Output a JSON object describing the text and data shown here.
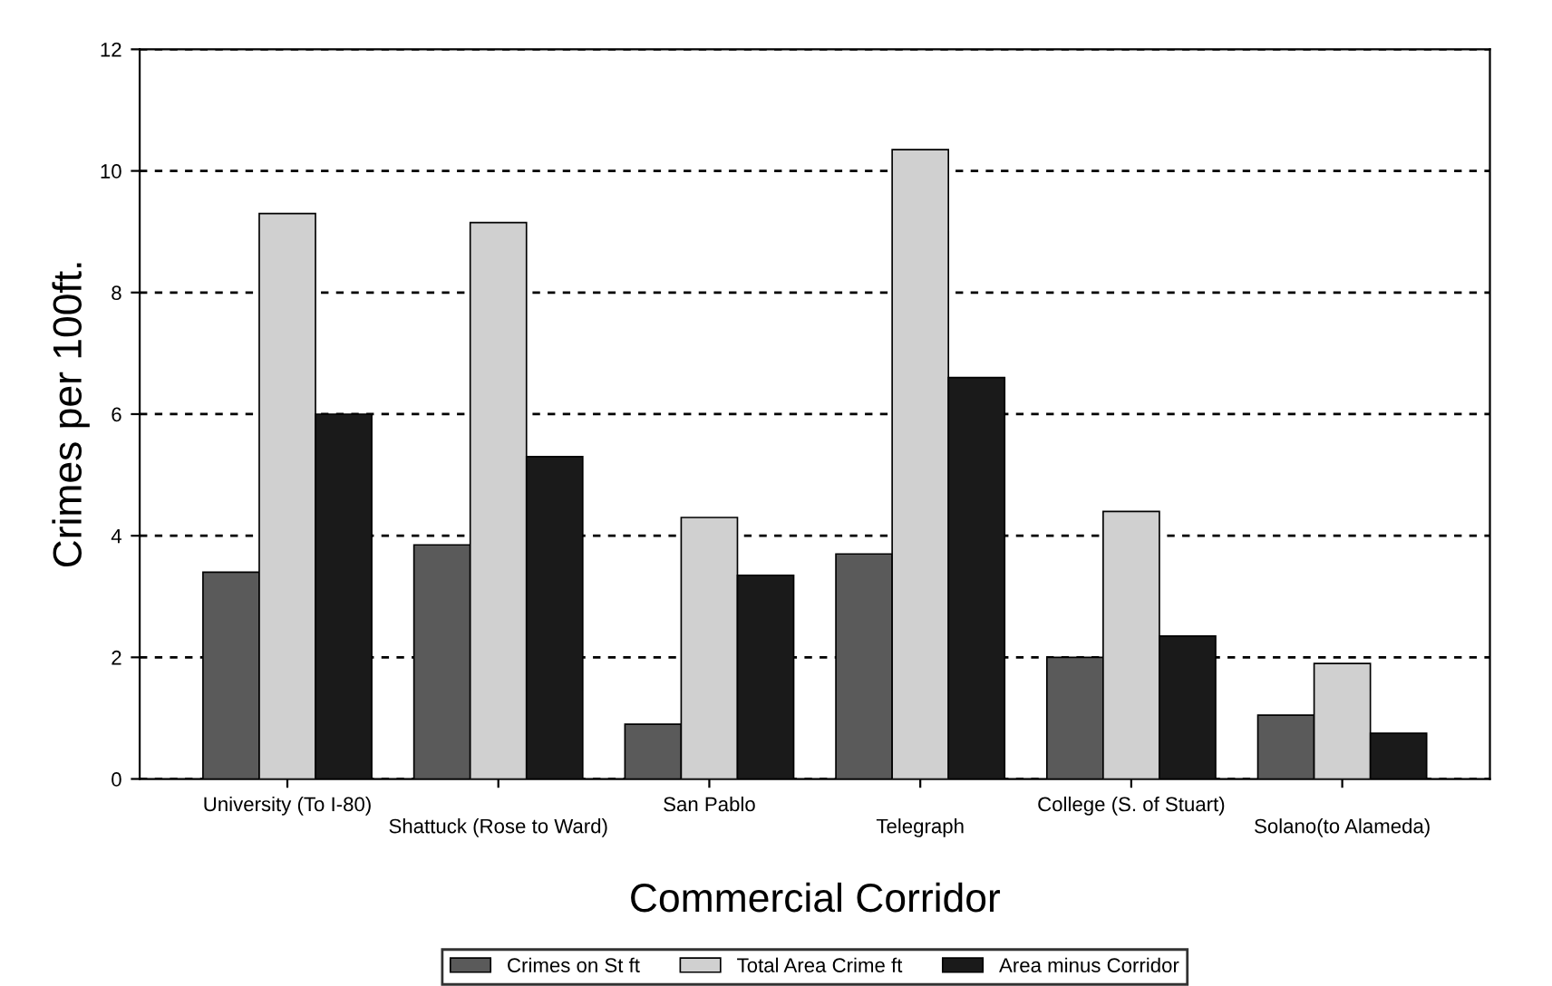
{
  "chart_data": {
    "type": "bar",
    "xlabel": "Commercial Corridor",
    "ylabel": "Crimes per 100ft.",
    "categories": [
      "University (To I-80)",
      "Shattuck (Rose to Ward)",
      "San Pablo",
      "Telegraph",
      "College (S. of Stuart)",
      "Solano(to Alameda)"
    ],
    "series": [
      {
        "name": "Crimes on St ft",
        "color": "#5a5a5a",
        "values": [
          3.4,
          3.85,
          0.9,
          3.7,
          2.0,
          1.05
        ]
      },
      {
        "name": "Total Area Crime ft",
        "color": "#d0d0d0",
        "values": [
          9.3,
          9.15,
          4.3,
          10.35,
          4.4,
          1.9
        ]
      },
      {
        "name": "Area minus Corridor",
        "color": "#1a1a1a",
        "values": [
          6.0,
          5.3,
          3.35,
          6.6,
          2.35,
          0.75
        ]
      }
    ],
    "ylim": [
      0,
      12
    ],
    "yticks": [
      0,
      2,
      4,
      6,
      8,
      10,
      12
    ],
    "grid": "y",
    "legend": "bottom"
  }
}
